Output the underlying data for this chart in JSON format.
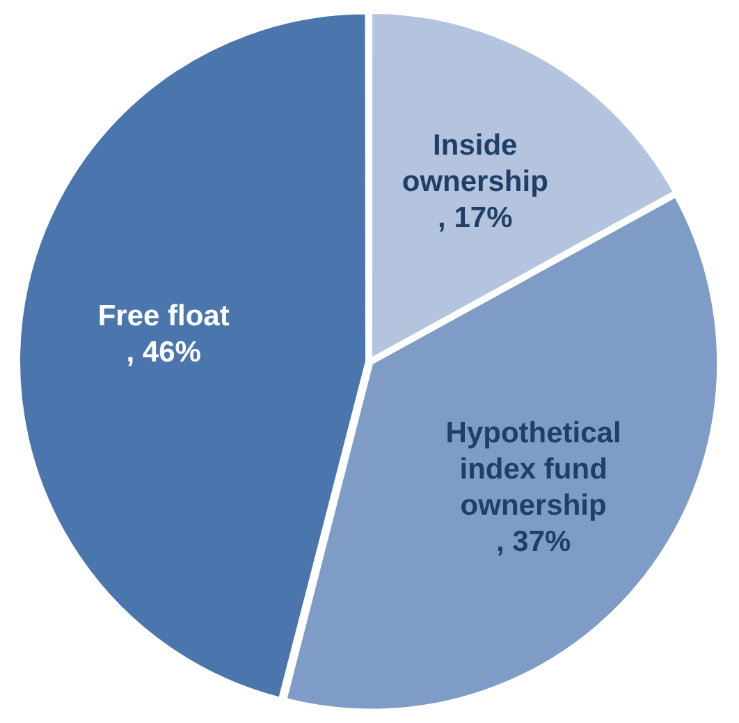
{
  "chart_data": {
    "type": "pie",
    "categories": [
      "Inside ownership",
      "Hypothetical index fund ownership",
      "Free float"
    ],
    "values": [
      17,
      37,
      46
    ],
    "value_labels": [
      ", 17%",
      ", 37%",
      ", 46%"
    ],
    "colors": [
      "#b4c3de",
      "#7f9cc7",
      "#4a76ad"
    ],
    "legend": false
  }
}
